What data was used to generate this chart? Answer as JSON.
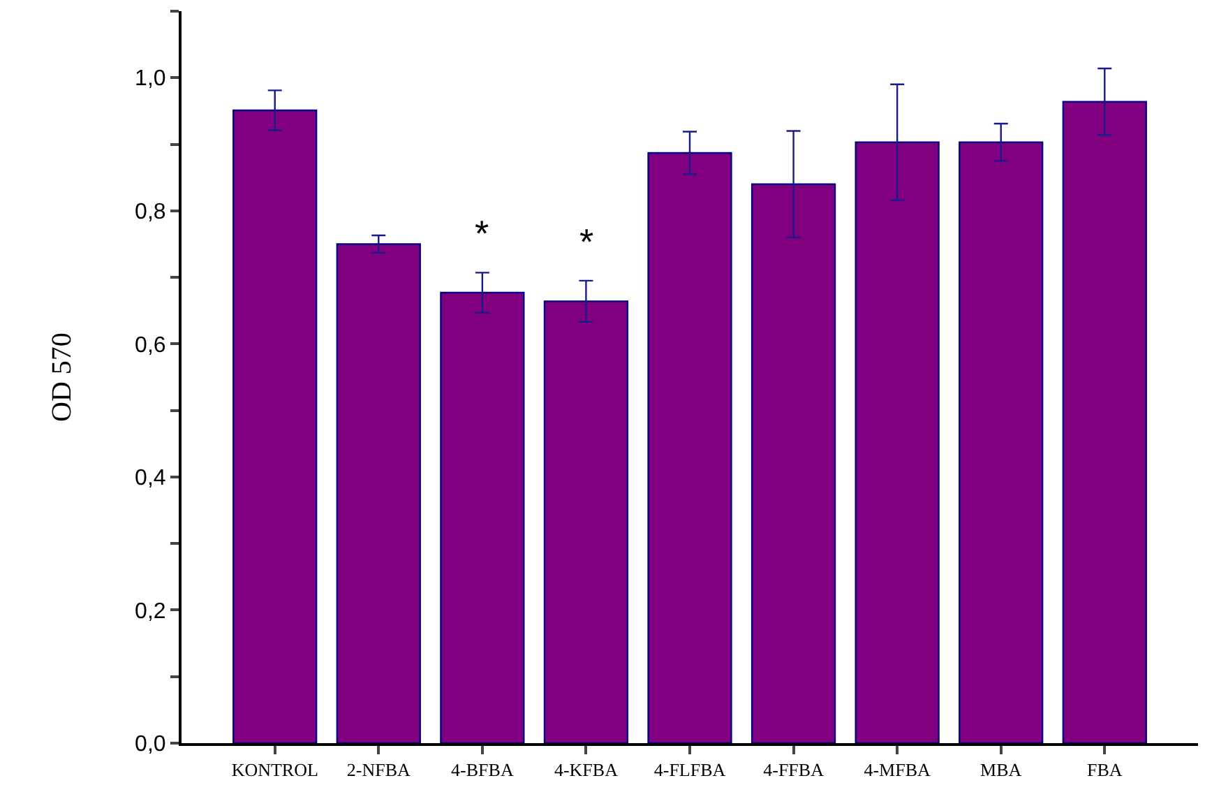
{
  "chart_data": {
    "type": "bar",
    "ylabel": "OD 570",
    "categories": [
      "KONTROL",
      "2-NFBA",
      "4-BFBA",
      "4-KFBA",
      "4-FLFBA",
      "4-FFBA",
      "4-MFBA",
      "MBA",
      "FBA"
    ],
    "series": [
      {
        "color": "#800080",
        "values": [
          0.951,
          0.75,
          0.677,
          0.664,
          0.887,
          0.84,
          0.903,
          0.903,
          0.964
        ],
        "errors": [
          0.03,
          0.013,
          0.03,
          0.031,
          0.032,
          0.08,
          0.087,
          0.028,
          0.05
        ]
      }
    ],
    "ylim": [
      0,
      1.1
    ],
    "yticks": [
      {
        "value": 0,
        "label": "0,0"
      },
      {
        "value": 0.1,
        "label": null
      },
      {
        "value": 0.2,
        "label": "0,2"
      },
      {
        "value": 0.3,
        "label": null
      },
      {
        "value": 0.4,
        "label": "0,4"
      },
      {
        "value": 0.5,
        "label": null
      },
      {
        "value": 0.6,
        "label": "0,6"
      },
      {
        "value": 0.7,
        "label": null
      },
      {
        "value": 0.8,
        "label": "0,8"
      },
      {
        "value": 0.9,
        "label": null
      },
      {
        "value": 1.0,
        "label": "1,0"
      },
      {
        "value": 1.1,
        "label": null
      }
    ],
    "annotations": [
      "*",
      "*"
    ]
  }
}
